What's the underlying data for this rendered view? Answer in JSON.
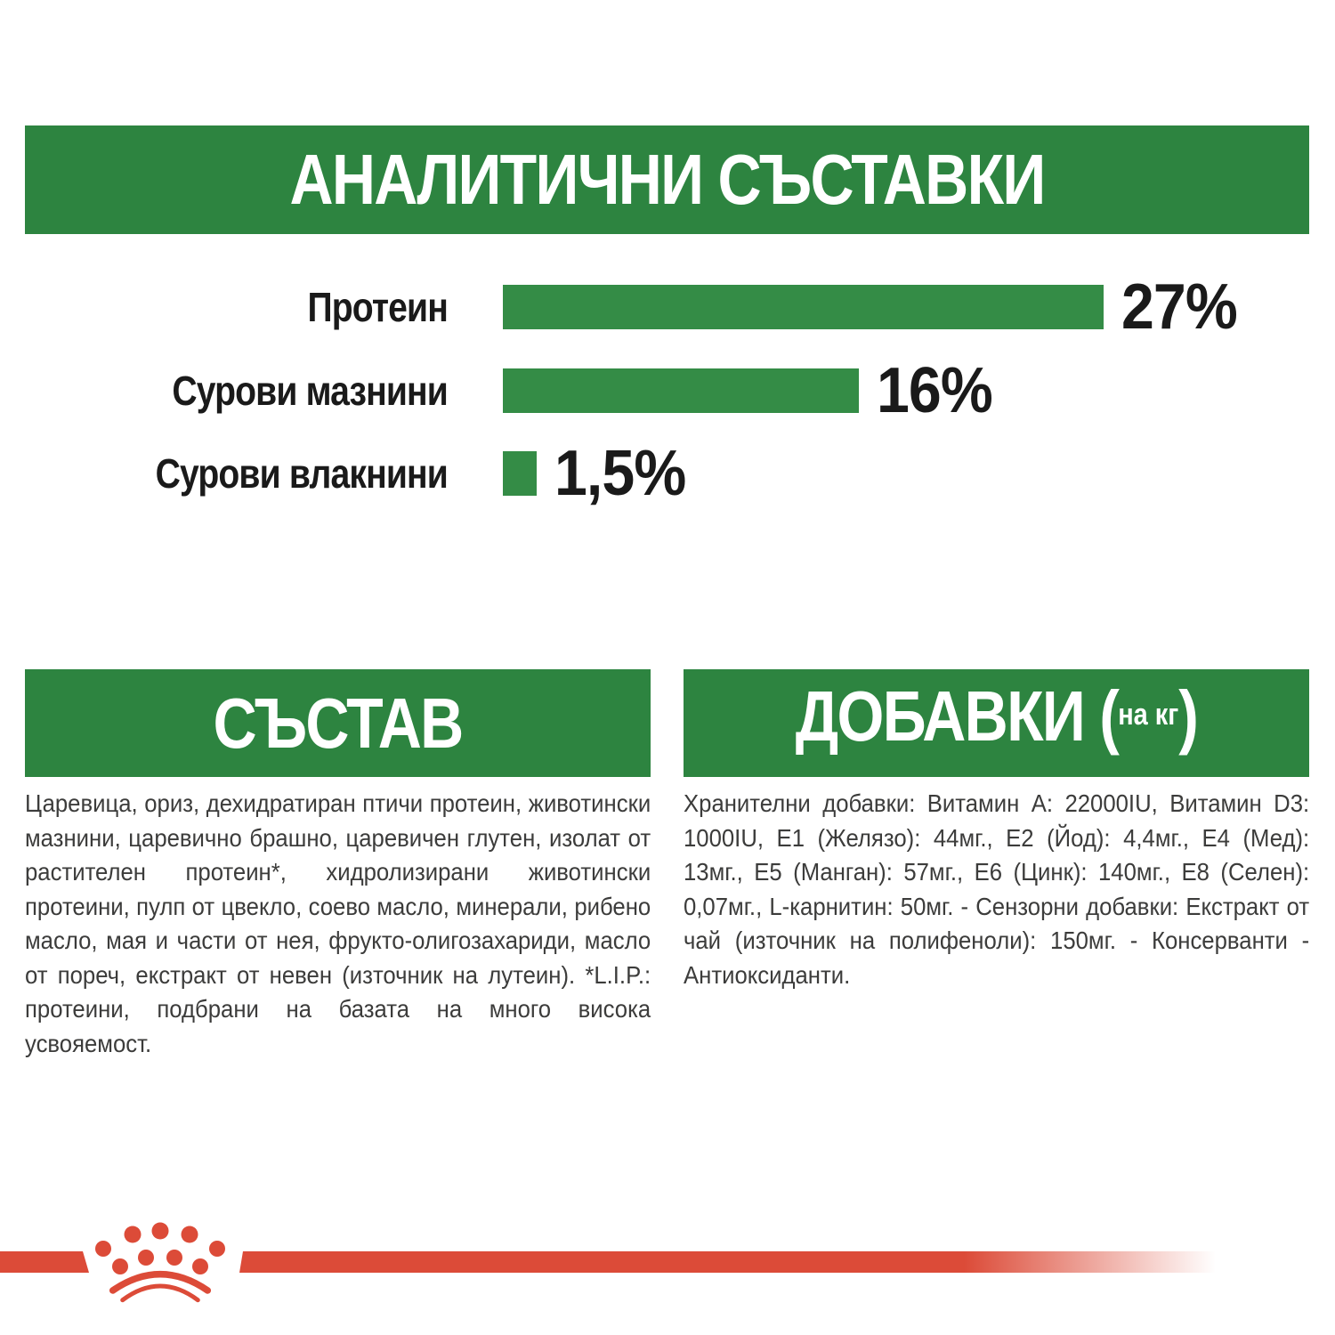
{
  "colors": {
    "background": "#FFFFFF",
    "green": "#2D8440",
    "bar_green": "#348C46",
    "red": "#DC4B38",
    "heading_text": "#FFFFFF",
    "label_text": "#1A1A1A",
    "body_text": "#3C3C3B"
  },
  "header": {
    "title": "АНАЛИТИЧНИ СЪСТАВКИ"
  },
  "chart_data": {
    "type": "bar",
    "orientation": "horizontal",
    "title": "АНАЛИТИЧНИ СЪСТАВКИ",
    "categories": [
      "Протеин",
      "Сурови мазнини",
      "Сурови влакнини"
    ],
    "values": [
      27,
      16,
      1.5
    ],
    "value_labels": [
      "27%",
      "16%",
      "1,5%"
    ],
    "xlim": [
      0,
      27
    ],
    "bar_color": "#348C46",
    "grid": false,
    "legend": false
  },
  "sections": {
    "composition": {
      "title": "СЪСТАВ",
      "body": "Царевица, ориз, дехидратиран птичи протеин, животински мазнини, царевично брашно, царевичен глутен, изолат от растителен протеин*, хидролизирани животински протеини, пулп от цвекло, соево масло, минерали, рибено масло, мая и части от нея, фрукто-олигозахариди, масло от пореч, екстракт от невен (източник на лутеин). *L.I.P.: протеини, подбрани на базата на много висока усвояемост."
    },
    "additives": {
      "title_main": "ДОБАВКИ (",
      "title_unit": "на кг",
      "title_close": ")",
      "body": "Хранителни добавки: Витамин А: 22000IU, Витамин D3: 1000IU, E1 (Желязо): 44мг., E2 (Йод): 4,4мг., E4 (Мед): 13мг., E5 (Манган): 57мг., E6 (Цинк): 140мг., E8 (Селен): 0,07мг., L-карнитин: 50мг. - Сензорни добавки: Екстракт от чай (източник на полифеноли): 150мг. - Консерванти - Антиоксиданти."
    }
  },
  "footer": {
    "logo": "royal-canin-crown"
  }
}
